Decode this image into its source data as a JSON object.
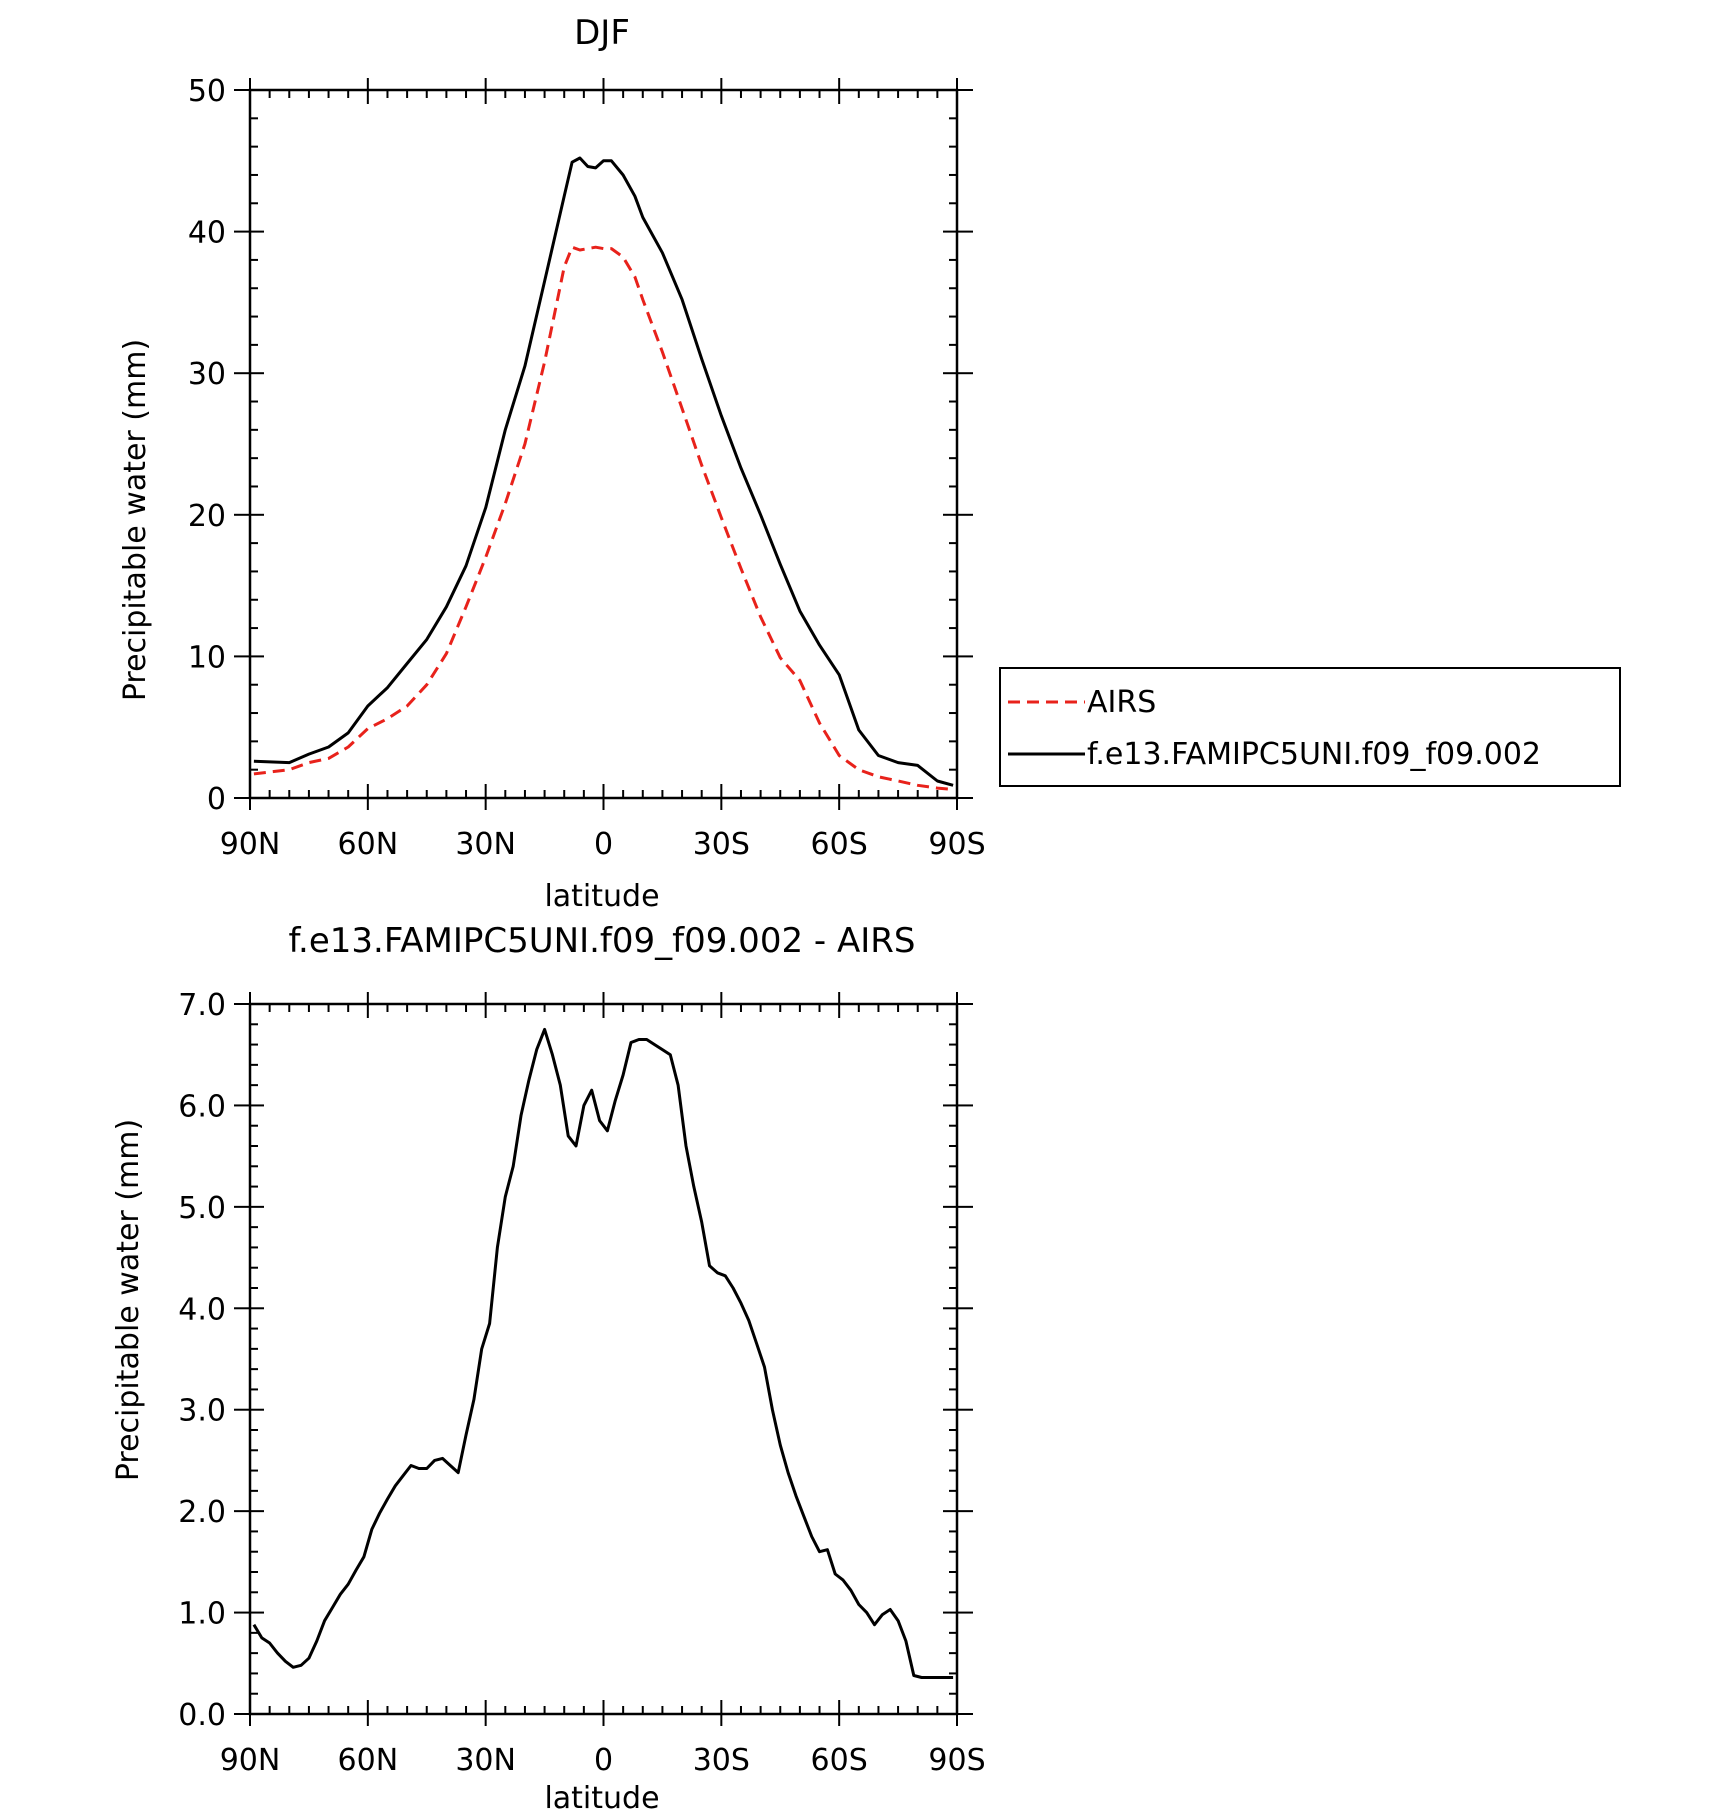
{
  "chart_data": [
    {
      "type": "line",
      "title": "DJF",
      "xlabel": "latitude",
      "ylabel": "Precipitable water (mm)",
      "xlim": [
        90,
        -90
      ],
      "ylim": [
        0,
        50
      ],
      "x_ticks": [
        90,
        60,
        30,
        0,
        -30,
        -60,
        -90
      ],
      "x_tick_labels": [
        "90N",
        "60N",
        "30N",
        "0",
        "30S",
        "60S",
        "90S"
      ],
      "y_ticks": [
        0,
        10,
        20,
        30,
        40,
        50
      ],
      "y_tick_labels": [
        "0",
        "10",
        "20",
        "30",
        "40",
        "50"
      ],
      "legend_position": "right",
      "series": [
        {
          "name": "AIRS",
          "color": "#e8221b",
          "dash": "dashed",
          "x": [
            89,
            80,
            75,
            70,
            65,
            60,
            55,
            50,
            45,
            40,
            35,
            30,
            25,
            20,
            15,
            10,
            8,
            6,
            4,
            2,
            0,
            -2,
            -5,
            -8,
            -10,
            -15,
            -20,
            -25,
            -30,
            -35,
            -40,
            -45,
            -50,
            -55,
            -60,
            -65,
            -70,
            -75,
            -80,
            -85,
            -89
          ],
          "y": [
            1.7,
            2.0,
            2.5,
            2.8,
            3.6,
            4.9,
            5.6,
            6.5,
            8.0,
            10.2,
            13.5,
            17.0,
            20.8,
            25.0,
            30.8,
            37.5,
            38.9,
            38.7,
            38.8,
            38.9,
            38.8,
            38.8,
            38.2,
            36.8,
            35.2,
            31.5,
            27.5,
            23.5,
            19.8,
            16.2,
            12.8,
            9.9,
            8.3,
            5.3,
            3.0,
            2.0,
            1.5,
            1.2,
            0.9,
            0.7,
            0.6
          ],
          "values_note": ""
        },
        {
          "name": "f.e13.FAMIPC5UNI.f09_f09.002",
          "color": "#000000",
          "dash": "solid",
          "x": [
            89,
            80,
            75,
            70,
            65,
            60,
            55,
            50,
            45,
            40,
            35,
            30,
            25,
            20,
            15,
            10,
            8,
            6,
            4,
            2,
            0,
            -2,
            -5,
            -8,
            -10,
            -15,
            -20,
            -25,
            -30,
            -35,
            -40,
            -45,
            -50,
            -55,
            -60,
            -65,
            -70,
            -75,
            -80,
            -85,
            -89
          ],
          "y": [
            2.6,
            2.5,
            3.1,
            3.6,
            4.6,
            6.5,
            7.8,
            9.5,
            11.2,
            13.5,
            16.4,
            20.5,
            26.0,
            30.5,
            36.5,
            42.5,
            44.9,
            45.2,
            44.6,
            44.5,
            45.0,
            45.0,
            44.0,
            42.5,
            41.0,
            38.5,
            35.2,
            31.0,
            27.0,
            23.3,
            20.0,
            16.5,
            13.2,
            10.8,
            8.7,
            4.8,
            3.0,
            2.5,
            2.3,
            1.2,
            0.9
          ]
        }
      ]
    },
    {
      "type": "line",
      "title": "f.e13.FAMIPC5UNI.f09_f09.002 - AIRS",
      "xlabel": "latitude",
      "ylabel": "Precipitable water (mm)",
      "xlim": [
        90,
        -90
      ],
      "ylim": [
        0,
        7
      ],
      "x_ticks": [
        90,
        60,
        30,
        0,
        -30,
        -60,
        -90
      ],
      "x_tick_labels": [
        "90N",
        "60N",
        "30N",
        "0",
        "30S",
        "60S",
        "90S"
      ],
      "y_ticks": [
        0,
        1,
        2,
        3,
        4,
        5,
        6,
        7
      ],
      "y_tick_labels": [
        "0.0",
        "1.0",
        "2.0",
        "3.0",
        "4.0",
        "5.0",
        "6.0",
        "7.0"
      ],
      "series": [
        {
          "color": "#000000",
          "dash": "solid",
          "x": [
            89,
            87,
            85,
            83,
            81,
            79,
            77,
            75,
            73,
            71,
            69,
            67,
            65,
            63,
            61,
            59,
            57,
            55,
            53,
            51,
            49,
            47,
            45,
            43,
            41,
            39,
            37,
            35,
            33,
            31,
            29,
            27,
            25,
            23,
            21,
            19,
            17,
            15,
            13,
            11,
            9,
            7,
            5,
            3,
            1,
            -1,
            -3,
            -5,
            -7,
            -9,
            -11,
            -13,
            -15,
            -17,
            -19,
            -21,
            -23,
            -25,
            -27,
            -29,
            -31,
            -33,
            -35,
            -37,
            -39,
            -41,
            -43,
            -45,
            -47,
            -49,
            -51,
            -53,
            -55,
            -57,
            -59,
            -61,
            -63,
            -65,
            -67,
            -69,
            -71,
            -73,
            -75,
            -77,
            -79,
            -81,
            -83,
            -85,
            -87,
            -89
          ],
          "y": [
            0.88,
            0.75,
            0.7,
            0.6,
            0.52,
            0.46,
            0.48,
            0.55,
            0.72,
            0.92,
            1.05,
            1.18,
            1.28,
            1.42,
            1.55,
            1.82,
            1.98,
            2.12,
            2.25,
            2.35,
            2.45,
            2.42,
            2.42,
            2.5,
            2.52,
            2.45,
            2.38,
            2.75,
            3.1,
            3.6,
            3.85,
            4.6,
            5.1,
            5.4,
            5.9,
            6.25,
            6.55,
            6.75,
            6.5,
            6.2,
            5.7,
            5.6,
            6.0,
            6.15,
            5.85,
            5.75,
            6.05,
            6.3,
            6.62,
            6.65,
            6.65,
            6.6,
            6.55,
            6.5,
            6.2,
            5.6,
            5.2,
            4.85,
            4.42,
            4.35,
            4.32,
            4.2,
            4.05,
            3.88,
            3.65,
            3.42,
            3.0,
            2.65,
            2.38,
            2.15,
            1.95,
            1.75,
            1.6,
            1.62,
            1.38,
            1.32,
            1.22,
            1.08,
            1.0,
            0.88,
            0.98,
            1.03,
            0.92,
            0.72,
            0.38,
            0.36,
            0.36,
            0.36,
            0.36,
            0.36
          ]
        }
      ]
    }
  ]
}
